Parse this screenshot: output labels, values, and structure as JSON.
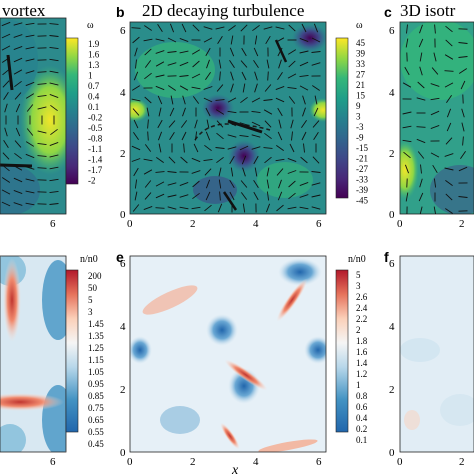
{
  "titles": {
    "a": "vortex",
    "b": "2D decaying turbulence",
    "c": "3D isotr"
  },
  "panel_labels": {
    "b": "b",
    "c": "c",
    "e": "e",
    "f": "f"
  },
  "axis": {
    "xlabel": "x",
    "ticks": [
      "0",
      "2",
      "4",
      "6"
    ]
  },
  "colorbars": {
    "omega_a": {
      "title": "ω",
      "labels": [
        "1.9",
        "1.6",
        "1.3",
        "1",
        "0.7",
        "0.4",
        "0.1",
        "-0.2",
        "-0.5",
        "-0.8",
        "-1.1",
        "-1.4",
        "-1.7",
        "-2"
      ]
    },
    "omega_b": {
      "title": "ω",
      "labels": [
        "45",
        "39",
        "33",
        "27",
        "21",
        "15",
        "9",
        "3",
        "-3",
        "-9",
        "-15",
        "-21",
        "-27",
        "-33",
        "-39",
        "-45"
      ]
    },
    "n_a": {
      "title": "n/n0",
      "labels": [
        "200",
        "50",
        "5",
        "3",
        "1.45",
        "1.35",
        "1.25",
        "1.15",
        "1.05",
        "0.95",
        "0.85",
        "0.75",
        "0.65",
        "0.55",
        "0.45"
      ]
    },
    "n_b": {
      "title": "n/n0",
      "labels": [
        "5",
        "3",
        "2.6",
        "2.4",
        "2.2",
        "2",
        "1.8",
        "1.6",
        "1.4",
        "1.2",
        "1",
        "0.8",
        "0.6",
        "0.4",
        "0.2",
        "0.1"
      ]
    }
  },
  "colors": {
    "viridis": [
      "#440154",
      "#482878",
      "#3e4989",
      "#31688e",
      "#26828e",
      "#1f9e89",
      "#35b779",
      "#6ece58",
      "#b5de2b",
      "#fde725"
    ],
    "diverging": [
      "#2166ac",
      "#4393c3",
      "#92c5de",
      "#d1e5f0",
      "#f7f7f7",
      "#fddbc7",
      "#f4a582",
      "#d6604d",
      "#b2182b"
    ]
  }
}
